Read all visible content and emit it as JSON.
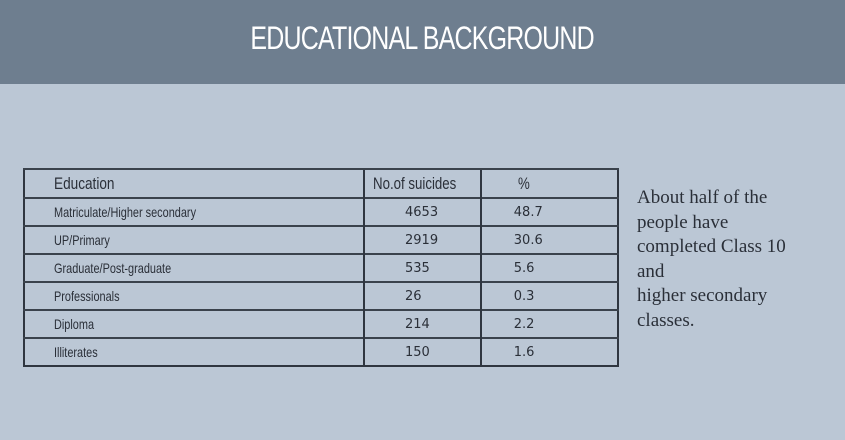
{
  "header": {
    "title": "EDUCATIONAL BACKGROUND"
  },
  "table": {
    "columns": [
      "Education",
      "No.of suicides",
      "%"
    ],
    "rows": [
      {
        "education": "Matriculate/Higher secondary",
        "suicides": "4653",
        "percent": "48.7"
      },
      {
        "education": "UP/Primary",
        "suicides": "2919",
        "percent": "30.6"
      },
      {
        "education": "Graduate/Post-graduate",
        "suicides": "535",
        "percent": "5.6"
      },
      {
        "education": "Professionals",
        "suicides": "26",
        "percent": "0.3"
      },
      {
        "education": "Diploma",
        "suicides": "214",
        "percent": "2.2"
      },
      {
        "education": "Illiterates",
        "suicides": "150",
        "percent": "1.6"
      }
    ]
  },
  "note": {
    "lines": [
      "About half of the",
      "people have",
      "completed Class 10",
      "and",
      "higher secondary",
      "classes."
    ]
  },
  "colors": {
    "banner": "#6e7e8f",
    "background": "#bbc7d5",
    "text": "#2a2f38",
    "border": "#2f3640"
  }
}
